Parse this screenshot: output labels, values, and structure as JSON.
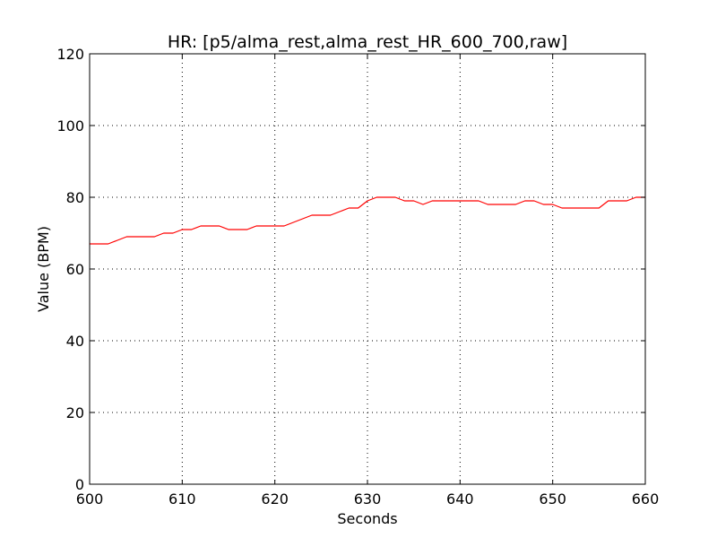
{
  "chart_data": {
    "type": "line",
    "title": "HR: [p5/alma_rest,alma_rest_HR_600_700,raw]",
    "xlabel": "Seconds",
    "ylabel": "Value (BPM)",
    "xlim": [
      600,
      660
    ],
    "ylim": [
      0,
      120
    ],
    "x_ticks": [
      600,
      610,
      620,
      630,
      640,
      650,
      660
    ],
    "y_ticks": [
      0,
      20,
      40,
      60,
      80,
      100,
      120
    ],
    "grid": true,
    "series": [
      {
        "name": "HR",
        "color": "#ff0000",
        "x": [
          600,
          601,
          602,
          603,
          604,
          605,
          606,
          607,
          608,
          609,
          610,
          611,
          612,
          613,
          614,
          615,
          616,
          617,
          618,
          619,
          620,
          621,
          622,
          623,
          624,
          625,
          626,
          627,
          628,
          629,
          630,
          631,
          632,
          633,
          634,
          635,
          636,
          637,
          638,
          639,
          640,
          641,
          642,
          643,
          644,
          645,
          646,
          647,
          648,
          649,
          650,
          651,
          652,
          653,
          654,
          655,
          656,
          657,
          658,
          659,
          660
        ],
        "values": [
          67,
          67,
          67,
          68,
          69,
          69,
          69,
          69,
          70,
          70,
          71,
          71,
          72,
          72,
          72,
          71,
          71,
          71,
          72,
          72,
          72,
          72,
          73,
          74,
          75,
          75,
          75,
          76,
          77,
          77,
          79,
          80,
          80,
          80,
          79,
          79,
          78,
          79,
          79,
          79,
          79,
          79,
          79,
          78,
          78,
          78,
          78,
          79,
          79,
          78,
          78,
          77,
          77,
          77,
          77,
          77,
          79,
          79,
          79,
          80,
          80
        ]
      }
    ]
  }
}
